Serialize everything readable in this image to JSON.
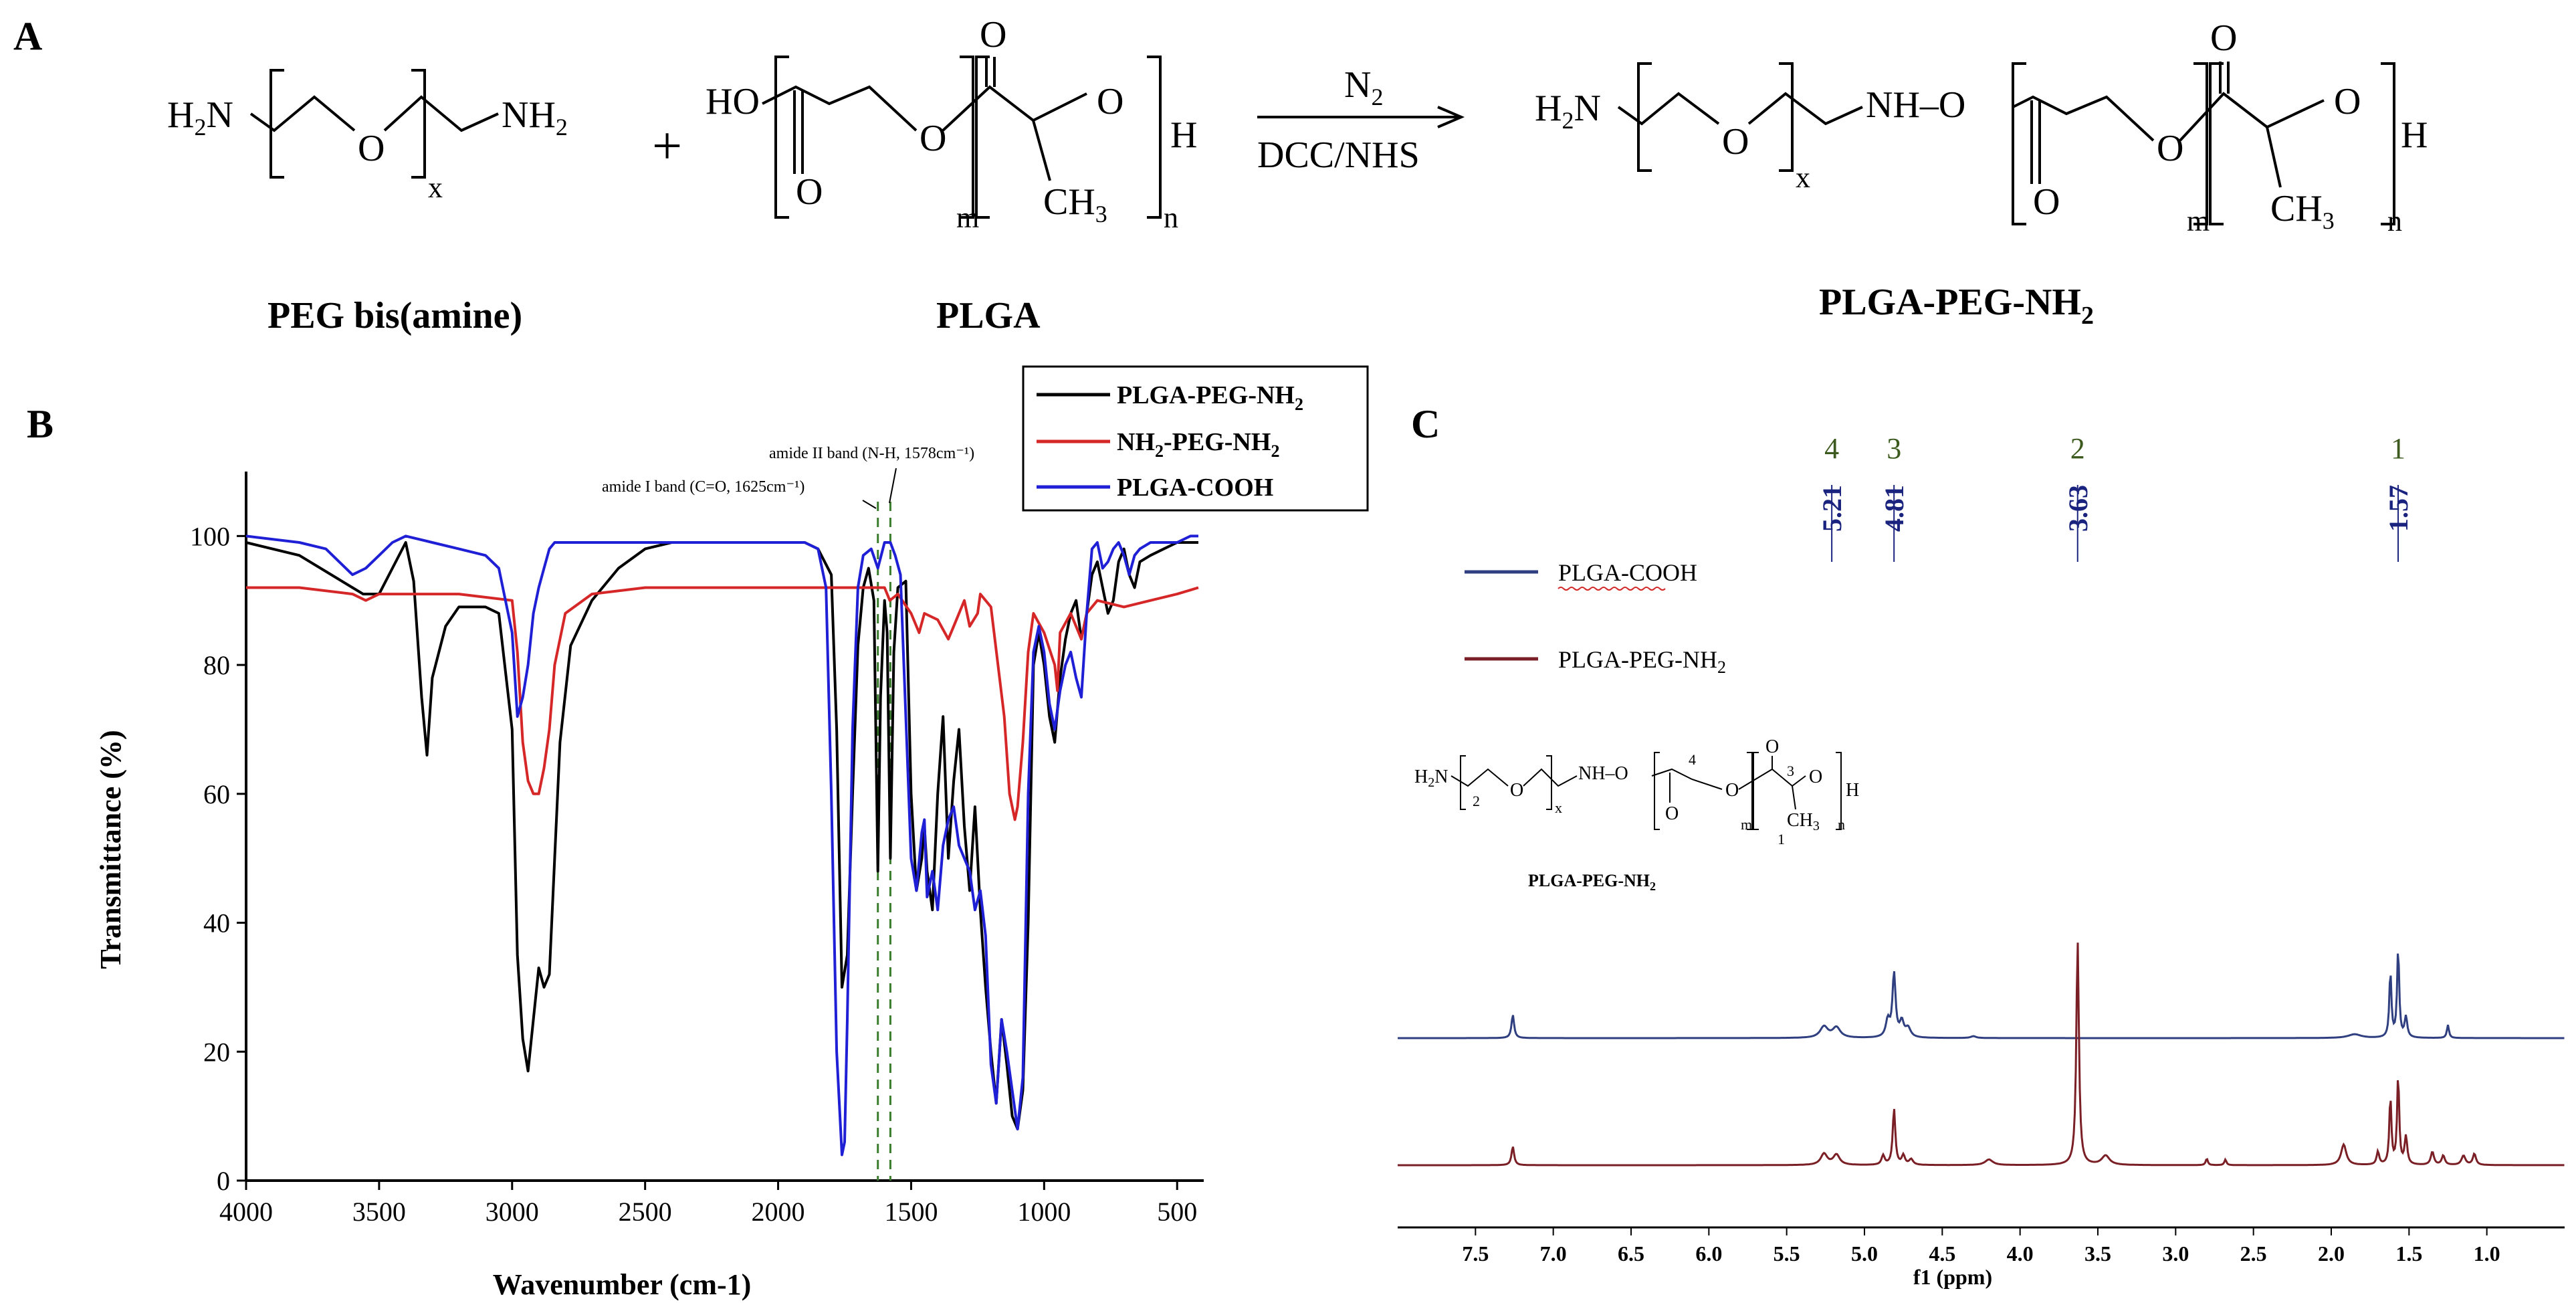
{
  "panel_a": {
    "letter": "A",
    "reactant1_name": "PEG bis(amine)",
    "reactant2_name": "PLGA",
    "product_name": "PLGA-PEG-NH",
    "product_name_sub": "2",
    "reagent_top": "N",
    "reagent_top_sub": "2",
    "reagent_bottom": "DCC/NHS",
    "plus": "+",
    "atoms": {
      "h2n": "H",
      "h2n_sub": "2",
      "n": "N",
      "o": "O",
      "nh2": "NH",
      "nh2_sub": "2",
      "ho": "HO",
      "h": "H",
      "ch3": "CH",
      "ch3_sub": "3",
      "nh_o": "NH",
      "dash_o": "–O",
      "x": "x",
      "m": "m",
      "n_idx": "n"
    }
  },
  "panel_b": {
    "letter": "B",
    "legend": [
      {
        "label": "PLGA-PEG-NH",
        "sub": "2",
        "color": "#000000"
      },
      {
        "label": "NH",
        "sub": "2",
        "label_after": "-PEG-NH",
        "sub2": "2",
        "color": "#d62728"
      },
      {
        "label": "PLGA-COOH",
        "sub": "",
        "color": "#1f1fd6"
      }
    ],
    "annotation_1": "amide II band (N-H, 1578cm⁻¹)",
    "annotation_2": "amide I band (C=O, 1625cm⁻¹)"
  },
  "panel_c": {
    "letter": "C",
    "peak_numbers": [
      "4",
      "3",
      "2",
      "1"
    ],
    "peak_labels": [
      "5.21",
      "4.81",
      "3.63",
      "1.57"
    ],
    "legend": [
      {
        "label": "PLGA-COOH",
        "color": "#2f3f80"
      },
      {
        "label": "PLGA-PEG-NH",
        "sub": "2",
        "color": "#7a1f25"
      }
    ],
    "inset_caption": "PLGA-PEG-NH",
    "inset_caption_sub": "2",
    "inset_numbers": [
      "2",
      "4",
      "3",
      "1"
    ],
    "inset_atoms": {
      "h2n": "H",
      "h2n_sub": "2",
      "n": "N",
      "o": "O",
      "nh": "NH",
      "dash_o": "–O",
      "h": "H",
      "ch3": "CH",
      "ch3_sub": "3",
      "x": "x",
      "m": "m",
      "n_idx": "n"
    }
  },
  "chart_data": [
    {
      "type": "line",
      "panel": "B",
      "xlabel": "Wavenumber (cm-1)",
      "ylabel": "Transmittance (%)",
      "xlim": [
        4000,
        400
      ],
      "ylim": [
        0,
        110
      ],
      "x_ticks": [
        4000,
        3500,
        3000,
        2500,
        2000,
        1500,
        1000,
        500
      ],
      "y_ticks": [
        0,
        20,
        40,
        60,
        80,
        100
      ],
      "vlines": [
        1625,
        1578
      ],
      "series": [
        {
          "name": "PLGA-PEG-NH2",
          "color": "#000000",
          "x": [
            4000,
            3800,
            3600,
            3560,
            3500,
            3450,
            3400,
            3370,
            3340,
            3320,
            3300,
            3250,
            3200,
            3100,
            3050,
            3000,
            2980,
            2960,
            2940,
            2920,
            2900,
            2880,
            2860,
            2840,
            2820,
            2780,
            2700,
            2600,
            2500,
            2400,
            2200,
            2000,
            1900,
            1850,
            1800,
            1780,
            1760,
            1740,
            1720,
            1700,
            1680,
            1660,
            1640,
            1625,
            1615,
            1600,
            1590,
            1578,
            1565,
            1550,
            1520,
            1500,
            1480,
            1460,
            1450,
            1440,
            1420,
            1400,
            1380,
            1360,
            1340,
            1320,
            1300,
            1280,
            1260,
            1240,
            1220,
            1200,
            1180,
            1160,
            1140,
            1120,
            1100,
            1080,
            1060,
            1040,
            1020,
            1000,
            980,
            960,
            940,
            920,
            900,
            880,
            860,
            840,
            820,
            800,
            780,
            760,
            740,
            720,
            700,
            680,
            660,
            640,
            600,
            550,
            500,
            450,
            420
          ],
          "y": [
            99,
            97,
            92,
            91,
            91,
            95,
            99,
            93,
            75,
            66,
            78,
            86,
            89,
            89,
            88,
            70,
            35,
            22,
            17,
            25,
            33,
            30,
            32,
            50,
            68,
            83,
            90,
            95,
            98,
            99,
            99,
            99,
            99,
            98,
            94,
            70,
            30,
            35,
            60,
            83,
            92,
            95,
            90,
            48,
            75,
            90,
            85,
            50,
            82,
            92,
            93,
            60,
            45,
            50,
            55,
            48,
            42,
            60,
            72,
            50,
            62,
            70,
            55,
            45,
            58,
            42,
            30,
            20,
            12,
            25,
            18,
            10,
            8,
            14,
            40,
            80,
            85,
            80,
            72,
            68,
            78,
            84,
            88,
            90,
            84,
            88,
            94,
            96,
            92,
            88,
            90,
            96,
            98,
            94,
            92,
            96,
            97,
            98,
            99,
            99,
            99
          ]
        },
        {
          "name": "NH2-PEG-NH2",
          "color": "#d62728",
          "x": [
            4000,
            3800,
            3600,
            3550,
            3500,
            3400,
            3200,
            3000,
            2980,
            2960,
            2940,
            2920,
            2900,
            2880,
            2860,
            2840,
            2800,
            2700,
            2500,
            2200,
            2000,
            1800,
            1700,
            1650,
            1600,
            1580,
            1550,
            1500,
            1470,
            1450,
            1400,
            1360,
            1340,
            1300,
            1280,
            1250,
            1240,
            1200,
            1150,
            1130,
            1110,
            1100,
            1080,
            1060,
            1040,
            1000,
            960,
            950,
            940,
            900,
            860,
            840,
            800,
            700,
            600,
            500,
            420
          ],
          "y": [
            92,
            92,
            91,
            90,
            91,
            91,
            91,
            90,
            82,
            68,
            62,
            60,
            60,
            64,
            70,
            80,
            88,
            91,
            92,
            92,
            92,
            92,
            92,
            92,
            92,
            90,
            91,
            88,
            85,
            88,
            87,
            84,
            86,
            90,
            86,
            88,
            91,
            89,
            72,
            60,
            56,
            58,
            68,
            82,
            88,
            85,
            80,
            76,
            85,
            88,
            84,
            88,
            90,
            89,
            90,
            91,
            92
          ]
        },
        {
          "name": "PLGA-COOH",
          "color": "#1f1fd6",
          "x": [
            4000,
            3800,
            3700,
            3650,
            3600,
            3550,
            3500,
            3450,
            3400,
            3300,
            3200,
            3100,
            3050,
            3000,
            2980,
            2960,
            2940,
            2920,
            2900,
            2880,
            2860,
            2840,
            2800,
            2700,
            2500,
            2200,
            2000,
            1900,
            1850,
            1820,
            1800,
            1780,
            1760,
            1750,
            1740,
            1720,
            1700,
            1680,
            1650,
            1625,
            1600,
            1578,
            1560,
            1540,
            1520,
            1500,
            1480,
            1460,
            1450,
            1440,
            1420,
            1400,
            1380,
            1360,
            1340,
            1320,
            1300,
            1280,
            1260,
            1240,
            1220,
            1200,
            1180,
            1160,
            1140,
            1120,
            1100,
            1080,
            1060,
            1040,
            1020,
            1000,
            980,
            960,
            940,
            920,
            900,
            880,
            860,
            840,
            820,
            800,
            780,
            760,
            740,
            720,
            700,
            680,
            660,
            640,
            600,
            550,
            500,
            450,
            420
          ],
          "y": [
            100,
            99,
            98,
            96,
            94,
            95,
            97,
            99,
            100,
            99,
            98,
            97,
            95,
            85,
            72,
            75,
            80,
            88,
            92,
            95,
            98,
            99,
            99,
            99,
            99,
            99,
            99,
            99,
            98,
            92,
            60,
            20,
            4,
            6,
            25,
            70,
            92,
            97,
            98,
            95,
            99,
            99,
            97,
            94,
            72,
            50,
            45,
            54,
            56,
            44,
            48,
            42,
            52,
            56,
            58,
            52,
            50,
            48,
            42,
            45,
            38,
            18,
            12,
            25,
            20,
            14,
            8,
            16,
            60,
            82,
            86,
            82,
            74,
            70,
            76,
            80,
            82,
            78,
            75,
            88,
            98,
            99,
            95,
            96,
            98,
            99,
            97,
            94,
            97,
            98,
            99,
            99,
            99,
            100,
            100
          ]
        }
      ]
    },
    {
      "type": "line",
      "panel": "C",
      "xlabel": "f1 (ppm)",
      "xlim": [
        8.0,
        0.5
      ],
      "x_ticks": [
        7.5,
        7.0,
        6.5,
        6.0,
        5.5,
        5.0,
        4.5,
        4.0,
        3.5,
        3.0,
        2.5,
        2.0,
        1.5,
        1.0
      ],
      "x_tick_labels": [
        "7.5",
        "7.0",
        "6.5",
        "6.0",
        "5.5",
        "5.0",
        "4.5",
        "4.0",
        "3.5",
        "3.0",
        "2.5",
        "2.0",
        "1.5",
        "1.0"
      ],
      "peak_positions": [
        5.21,
        4.81,
        3.63,
        1.57
      ],
      "series": [
        {
          "name": "PLGA-COOH",
          "color": "#2f3f80",
          "peaks": [
            [
              7.26,
              25,
              0.01
            ],
            [
              5.26,
              12,
              0.03
            ],
            [
              5.18,
              11,
              0.03
            ],
            [
              4.85,
              18,
              0.015
            ],
            [
              4.81,
              68,
              0.012
            ],
            [
              4.76,
              16,
              0.015
            ],
            [
              4.72,
              10,
              0.02
            ],
            [
              4.3,
              2,
              0.02
            ],
            [
              1.85,
              4,
              0.05
            ],
            [
              1.62,
              70,
              0.008
            ],
            [
              1.57,
              95,
              0.008
            ],
            [
              1.52,
              22,
              0.01
            ],
            [
              1.25,
              14,
              0.008
            ]
          ]
        },
        {
          "name": "PLGA-PEG-NH2",
          "color": "#7a1f25",
          "peaks": [
            [
              7.26,
              20,
              0.01
            ],
            [
              5.26,
              12,
              0.025
            ],
            [
              5.18,
              11,
              0.025
            ],
            [
              4.88,
              10,
              0.012
            ],
            [
              4.81,
              60,
              0.01
            ],
            [
              4.75,
              10,
              0.012
            ],
            [
              4.7,
              6,
              0.015
            ],
            [
              4.2,
              6,
              0.03
            ],
            [
              3.63,
              240,
              0.01
            ],
            [
              3.45,
              10,
              0.03
            ],
            [
              2.8,
              7,
              0.008
            ],
            [
              2.68,
              6,
              0.008
            ],
            [
              1.92,
              22,
              0.02
            ],
            [
              1.7,
              14,
              0.01
            ],
            [
              1.62,
              72,
              0.008
            ],
            [
              1.57,
              95,
              0.008
            ],
            [
              1.52,
              30,
              0.01
            ],
            [
              1.35,
              14,
              0.012
            ],
            [
              1.28,
              10,
              0.012
            ],
            [
              1.15,
              10,
              0.015
            ],
            [
              1.08,
              12,
              0.012
            ]
          ]
        }
      ]
    }
  ]
}
